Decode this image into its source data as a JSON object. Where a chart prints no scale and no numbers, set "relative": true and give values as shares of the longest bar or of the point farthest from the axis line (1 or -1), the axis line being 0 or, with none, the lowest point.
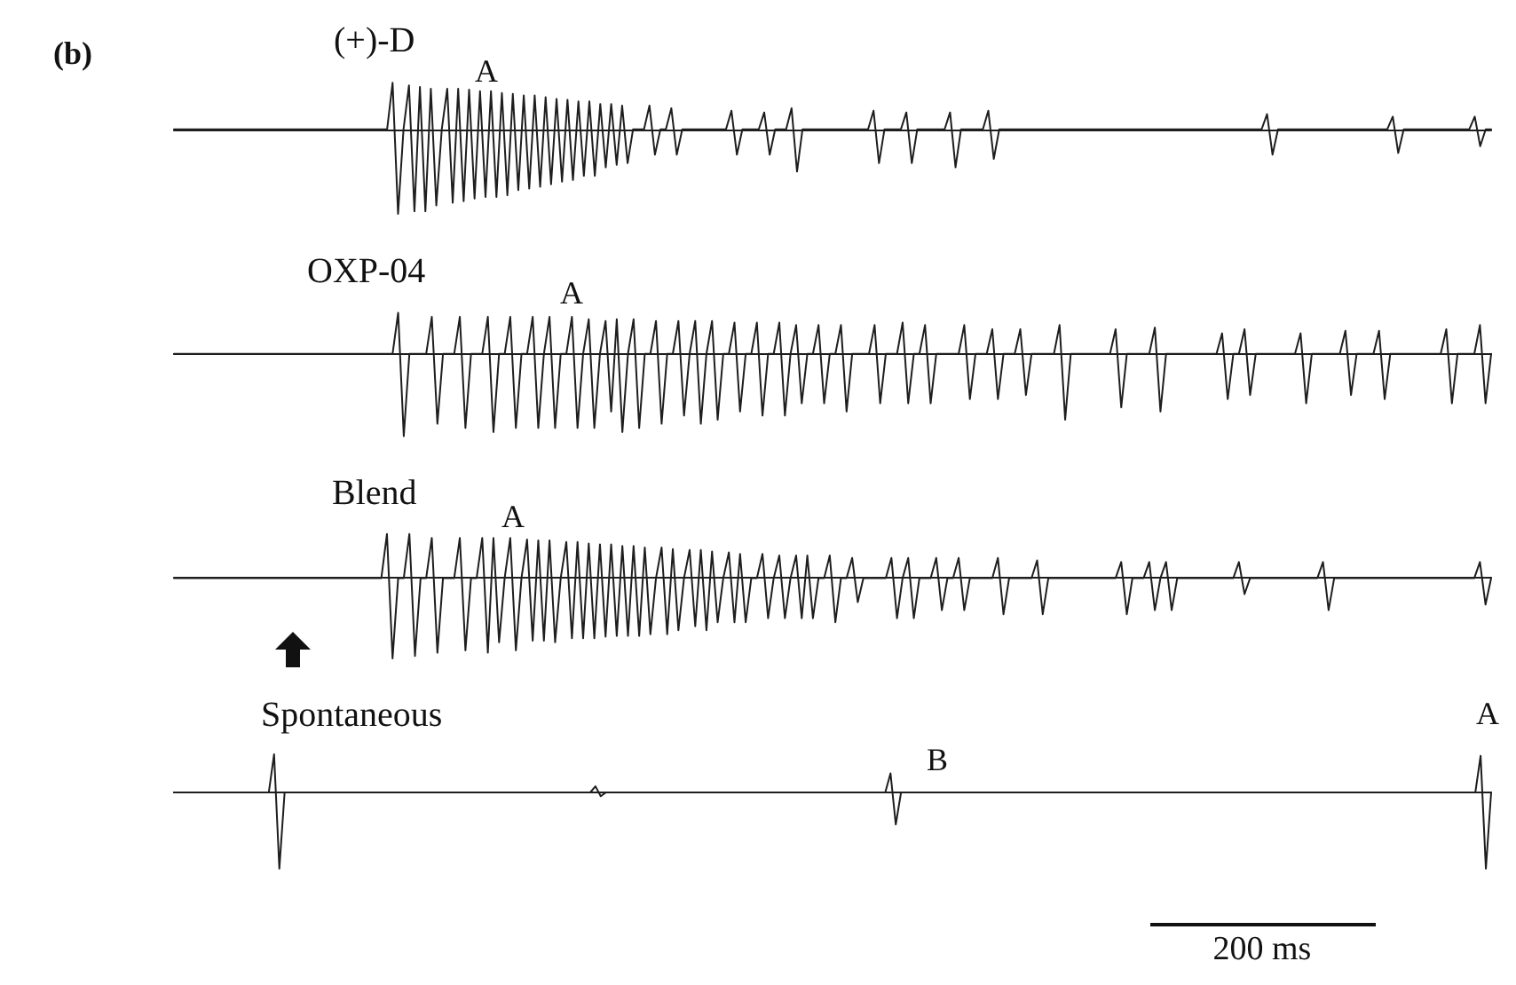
{
  "chart_data": [
    {
      "type": "line",
      "title": "(+)-D",
      "relative": true,
      "annotations": [
        "(b)",
        "A"
      ],
      "categories": [
        null,
        null,
        null,
        null,
        null,
        null,
        null,
        null,
        null,
        null,
        null,
        null,
        null,
        null,
        null,
        null,
        null,
        null,
        null,
        null,
        null,
        null,
        null,
        null,
        null,
        null,
        null,
        null,
        null,
        null,
        null,
        null,
        null,
        null,
        null,
        null,
        null,
        null,
        null,
        null,
        null,
        null,
        null,
        null,
        null,
        null,
        null,
        null,
        null,
        null,
        null,
        null,
        null,
        null,
        null,
        null,
        null,
        null,
        null,
        null,
        null,
        null,
        null,
        null,
        null,
        null,
        null,
        null,
        null,
        null,
        null,
        null,
        null,
        null,
        null,
        null,
        null,
        null,
        null,
        null,
        null,
        null,
        null,
        null,
        null,
        null,
        null,
        null,
        null,
        null,
        null,
        null,
        null,
        null,
        null,
        null,
        null,
        null,
        null,
        null,
        null,
        null,
        null,
        null,
        null,
        null,
        null,
        null,
        null,
        null,
        null,
        null,
        null,
        null,
        null,
        null,
        null,
        null,
        null,
        null,
        null,
        null,
        null,
        null,
        null,
        null,
        null,
        null,
        null,
        null,
        null,
        null,
        null,
        null,
        null,
        null,
        null,
        null,
        null,
        null,
        null,
        null,
        null,
        null,
        null,
        null,
        null,
        null,
        null,
        null,
        null,
        null,
        null,
        null,
        null,
        null,
        null,
        null,
        null,
        null,
        null,
        null,
        null,
        null,
        null,
        null,
        null,
        null,
        null,
        null,
        null,
        null,
        null,
        null,
        null,
        null,
        null,
        null,
        null,
        null,
        null,
        null,
        null,
        null,
        null,
        null,
        null,
        null,
        null,
        null,
        null,
        null,
        null,
        null,
        null,
        null,
        null,
        null,
        null,
        null,
        null,
        null,
        null,
        null,
        null,
        null,
        null,
        null,
        null,
        null,
        null,
        null,
        null,
        null,
        null,
        null,
        null,
        null,
        null,
        null,
        null,
        null,
        null,
        null,
        null,
        null,
        null,
        null,
        null,
        null,
        null,
        null,
        null,
        null,
        null,
        null,
        null,
        null,
        null,
        null,
        null,
        null
      ],
      "series": [
        {
          "color": "#1e1e1e",
          "values": [
            0,
            0,
            0,
            0,
            0,
            0,
            0,
            0,
            0,
            0,
            0,
            0,
            0,
            0,
            0,
            0,
            0,
            0,
            0,
            0,
            0,
            0,
            0,
            0,
            0,
            0,
            0,
            0,
            0,
            0,
            0,
            0,
            0,
            0,
            0,
            0,
            0,
            0,
            0,
            0,
            0.55,
            -1,
            0,
            0.52,
            -0.97,
            0.5,
            -0.97,
            0.48,
            -0.9,
            0,
            0.48,
            -0.87,
            0.48,
            -0.85,
            0.47,
            -0.82,
            0.45,
            -0.8,
            0.45,
            -0.8,
            0.43,
            -0.78,
            0.42,
            -0.72,
            0.4,
            -0.7,
            0.4,
            -0.68,
            0.38,
            -0.65,
            0.36,
            -0.62,
            0.35,
            -0.6,
            0.33,
            -0.55,
            0.33,
            -0.55,
            0.3,
            -0.45,
            0.3,
            -0.42,
            0.28,
            -0.4,
            0,
            0,
            0,
            0.28,
            -0.3,
            0,
            0,
            0.25,
            -0.3,
            0,
            0,
            0,
            0,
            0,
            0,
            0,
            0,
            0,
            0.22,
            -0.3,
            0,
            0,
            0,
            0,
            0.2,
            -0.3,
            0,
            0,
            0,
            0.25,
            -0.5,
            0,
            0,
            0,
            0,
            0,
            0,
            0,
            0,
            0,
            0,
            0,
            0,
            0,
            0.22,
            -0.4,
            0,
            0,
            0,
            0,
            0.2,
            -0.4,
            0,
            0,
            0,
            0,
            0,
            0,
            0.2,
            -0.45,
            0,
            0,
            0,
            0,
            0,
            0.22,
            -0.35,
            0,
            0,
            0,
            0,
            0,
            0,
            0,
            0,
            0,
            0,
            0,
            0,
            0,
            0,
            0,
            0,
            0,
            0,
            0,
            0,
            0,
            0,
            0,
            0,
            0,
            0,
            0,
            0,
            0,
            0,
            0,
            0,
            0,
            0,
            0,
            0,
            0,
            0,
            0,
            0,
            0,
            0,
            0,
            0,
            0,
            0,
            0,
            0,
            0,
            0.18,
            -0.3,
            0,
            0,
            0,
            0,
            0,
            0,
            0,
            0,
            0,
            0,
            0,
            0,
            0,
            0,
            0,
            0,
            0,
            0,
            0,
            0,
            0,
            0.15,
            -0.28,
            0,
            0,
            0,
            0,
            0,
            0,
            0,
            0,
            0,
            0,
            0,
            0,
            0,
            0.15,
            -0.2,
            0,
            0
          ]
        }
      ]
    },
    {
      "type": "line",
      "title": "OXP-04",
      "relative": true,
      "annotations": [
        "A"
      ],
      "categories": [
        null,
        null,
        null,
        null,
        null,
        null,
        null,
        null,
        null,
        null,
        null,
        null,
        null,
        null,
        null,
        null,
        null,
        null,
        null,
        null,
        null,
        null,
        null,
        null,
        null,
        null,
        null,
        null,
        null,
        null,
        null,
        null,
        null,
        null,
        null,
        null,
        null,
        null,
        null,
        null,
        null,
        null,
        null,
        null,
        null,
        null,
        null,
        null,
        null,
        null,
        null,
        null,
        null,
        null,
        null,
        null,
        null,
        null,
        null,
        null,
        null,
        null,
        null,
        null,
        null,
        null,
        null,
        null,
        null,
        null,
        null,
        null,
        null,
        null,
        null,
        null,
        null,
        null,
        null,
        null,
        null,
        null,
        null,
        null,
        null,
        null,
        null,
        null,
        null,
        null,
        null,
        null,
        null,
        null,
        null,
        null,
        null,
        null,
        null,
        null,
        null,
        null,
        null,
        null,
        null,
        null,
        null,
        null,
        null,
        null,
        null,
        null,
        null,
        null,
        null,
        null,
        null,
        null,
        null,
        null,
        null,
        null,
        null,
        null,
        null,
        null,
        null,
        null,
        null,
        null,
        null,
        null,
        null,
        null,
        null,
        null,
        null,
        null,
        null,
        null,
        null,
        null,
        null,
        null,
        null,
        null,
        null,
        null,
        null,
        null,
        null,
        null,
        null,
        null,
        null,
        null,
        null,
        null,
        null,
        null,
        null,
        null,
        null,
        null,
        null,
        null,
        null,
        null,
        null,
        null,
        null,
        null,
        null,
        null,
        null,
        null,
        null,
        null,
        null,
        null,
        null,
        null,
        null,
        null,
        null,
        null,
        null,
        null,
        null,
        null,
        null,
        null,
        null,
        null,
        null,
        null,
        null,
        null,
        null,
        null,
        null,
        null,
        null,
        null,
        null,
        null,
        null,
        null,
        null,
        null,
        null,
        null,
        null,
        null,
        null,
        null,
        null,
        null,
        null,
        null,
        null,
        null,
        null,
        null,
        null,
        null,
        null,
        null,
        null,
        null,
        null,
        null,
        null,
        null,
        null,
        null
      ],
      "series": [
        {
          "color": "#1e1e1e",
          "values": [
            0,
            0,
            0,
            0,
            0,
            0,
            0,
            0,
            0,
            0,
            0,
            0,
            0,
            0,
            0,
            0,
            0,
            0,
            0,
            0,
            0,
            0,
            0,
            0,
            0,
            0,
            0,
            0,
            0,
            0,
            0,
            0,
            0,
            0,
            0,
            0,
            0,
            0,
            0,
            0,
            0.5,
            -1,
            0,
            0,
            0,
            0,
            0.45,
            -0.85,
            0,
            0,
            0,
            0.45,
            -0.9,
            0,
            0,
            0,
            0.45,
            -0.95,
            0,
            0,
            0.45,
            -0.9,
            0,
            0,
            0.45,
            -0.9,
            0,
            0.45,
            -0.9,
            0,
            0,
            0.45,
            -0.9,
            0,
            0.42,
            -0.9,
            0,
            0.4,
            -0.7,
            0.42,
            -0.95,
            0,
            0.42,
            -0.9,
            0,
            0,
            0.4,
            -0.85,
            0,
            0,
            0.4,
            -0.75,
            0,
            0.4,
            -0.85,
            0,
            0.4,
            -0.8,
            0,
            0,
            0.38,
            -0.7,
            0,
            0,
            0.38,
            -0.75,
            0,
            0,
            0.38,
            -0.75,
            0,
            0.35,
            -0.6,
            0,
            0,
            0.35,
            -0.6,
            0,
            0,
            0.35,
            -0.7,
            0,
            0,
            0,
            0,
            0.35,
            -0.6,
            0,
            0,
            0,
            0.38,
            -0.6,
            0,
            0,
            0.35,
            -0.6,
            0,
            0,
            0,
            0,
            0,
            0.35,
            -0.55,
            0,
            0,
            0,
            0.3,
            -0.55,
            0,
            0,
            0,
            0.3,
            -0.5,
            0,
            0,
            0,
            0,
            0,
            0.35,
            -0.8,
            0,
            0,
            0,
            0,
            0,
            0,
            0,
            0,
            0.3,
            -0.65,
            0,
            0,
            0,
            0,
            0,
            0.32,
            -0.7,
            0,
            0,
            0,
            0,
            0,
            0,
            0,
            0,
            0,
            0,
            0.25,
            -0.55,
            0,
            0,
            0.3,
            -0.5,
            0,
            0,
            0,
            0,
            0,
            0,
            0,
            0,
            0.25,
            -0.6,
            0,
            0,
            0,
            0,
            0,
            0,
            0.28,
            -0.5,
            0,
            0,
            0,
            0,
            0.28,
            -0.55,
            0,
            0,
            0,
            0,
            0,
            0,
            0,
            0,
            0,
            0,
            0.3,
            -0.6,
            0,
            0,
            0,
            0,
            0.35,
            -0.6,
            0
          ]
        }
      ]
    },
    {
      "type": "line",
      "title": "Blend",
      "relative": true,
      "annotations": [
        "A"
      ],
      "categories": [
        null,
        null,
        null,
        null,
        null,
        null,
        null,
        null,
        null,
        null,
        null,
        null,
        null,
        null,
        null,
        null,
        null,
        null,
        null,
        null,
        null,
        null,
        null,
        null,
        null,
        null,
        null,
        null,
        null,
        null,
        null,
        null,
        null,
        null,
        null,
        null,
        null,
        null,
        null,
        null,
        null,
        null,
        null,
        null,
        null,
        null,
        null,
        null,
        null,
        null,
        null,
        null,
        null,
        null,
        null,
        null,
        null,
        null,
        null,
        null,
        null,
        null,
        null,
        null,
        null,
        null,
        null,
        null,
        null,
        null,
        null,
        null,
        null,
        null,
        null,
        null,
        null,
        null,
        null,
        null,
        null,
        null,
        null,
        null,
        null,
        null,
        null,
        null,
        null,
        null,
        null,
        null,
        null,
        null,
        null,
        null,
        null,
        null,
        null,
        null,
        null,
        null,
        null,
        null,
        null,
        null,
        null,
        null,
        null,
        null,
        null,
        null,
        null,
        null,
        null,
        null,
        null,
        null,
        null,
        null,
        null,
        null,
        null,
        null,
        null,
        null,
        null,
        null,
        null,
        null,
        null,
        null,
        null,
        null,
        null,
        null,
        null,
        null,
        null,
        null,
        null,
        null,
        null,
        null,
        null,
        null,
        null,
        null,
        null,
        null,
        null,
        null,
        null,
        null,
        null,
        null,
        null,
        null,
        null,
        null,
        null,
        null,
        null,
        null,
        null,
        null,
        null,
        null,
        null,
        null,
        null,
        null,
        null,
        null,
        null,
        null,
        null,
        null,
        null,
        null,
        null,
        null,
        null,
        null,
        null,
        null,
        null,
        null,
        null,
        null,
        null,
        null,
        null,
        null,
        null,
        null,
        null,
        null,
        null,
        null,
        null,
        null,
        null,
        null,
        null,
        null,
        null,
        null,
        null,
        null,
        null,
        null,
        null,
        null,
        null,
        null,
        null,
        null,
        null,
        null,
        null,
        null,
        null,
        null,
        null,
        null,
        null,
        null,
        null,
        null,
        null,
        null,
        null,
        null,
        null,
        null
      ],
      "series": [
        {
          "color": "#1e1e1e",
          "values": [
            0,
            0,
            0,
            0,
            0,
            0,
            0,
            0,
            0,
            0,
            0,
            0,
            0,
            0,
            0,
            0,
            0,
            0,
            0,
            0,
            0,
            0,
            0,
            0,
            0,
            0,
            0,
            0,
            0,
            0,
            0,
            0,
            0,
            0,
            0,
            0,
            0,
            0,
            0.55,
            -1,
            0,
            0,
            0.55,
            -0.97,
            0,
            0,
            0.5,
            -0.93,
            0,
            0,
            0,
            0.5,
            -0.9,
            0,
            0,
            0.5,
            -0.93,
            0.5,
            -0.8,
            0,
            0.5,
            -0.9,
            0,
            0.48,
            -0.78,
            0.47,
            -0.78,
            0.47,
            -0.8,
            0,
            0.45,
            -0.75,
            0.45,
            -0.75,
            0.43,
            -0.75,
            0.42,
            -0.73,
            0.42,
            -0.72,
            0.4,
            -0.72,
            0.4,
            -0.72,
            0.38,
            -0.7,
            0,
            0.38,
            -0.7,
            0.36,
            -0.65,
            0,
            0.35,
            -0.6,
            0.35,
            -0.65,
            0.33,
            -0.55,
            0,
            0.32,
            -0.55,
            0.3,
            -0.55,
            0,
            0,
            0.3,
            -0.5,
            0,
            0.28,
            -0.5,
            0,
            0.28,
            -0.5,
            0.28,
            -0.5,
            0,
            0,
            0.28,
            -0.55,
            0,
            0,
            0.25,
            -0.3,
            0,
            0,
            0,
            0,
            0,
            0.25,
            -0.5,
            0,
            0.25,
            -0.5,
            0,
            0,
            0,
            0.25,
            -0.4,
            0,
            0,
            0.25,
            -0.4,
            0,
            0,
            0,
            0,
            0,
            0.25,
            -0.45,
            0,
            0,
            0,
            0,
            0,
            0.22,
            -0.45,
            0,
            0,
            0,
            0,
            0,
            0,
            0,
            0,
            0,
            0,
            0,
            0,
            0,
            0.2,
            -0.45,
            0,
            0,
            0,
            0.2,
            -0.4,
            0,
            0.2,
            -0.4,
            0,
            0,
            0,
            0,
            0,
            0,
            0,
            0,
            0,
            0,
            0,
            0.2,
            -0.2,
            0,
            0,
            0,
            0,
            0,
            0,
            0,
            0,
            0,
            0,
            0,
            0,
            0,
            0.2,
            -0.4,
            0,
            0,
            0,
            0,
            0,
            0,
            0,
            0,
            0,
            0,
            0,
            0,
            0,
            0,
            0,
            0,
            0,
            0,
            0,
            0,
            0,
            0,
            0,
            0,
            0,
            0,
            0.2,
            -0.33,
            0
          ]
        }
      ]
    },
    {
      "type": "line",
      "title": "Spontaneous",
      "relative": true,
      "annotations": [
        "B",
        "A",
        "200 ms"
      ],
      "categories": [
        null,
        null,
        null,
        null,
        null,
        null,
        null,
        null,
        null,
        null,
        null,
        null,
        null,
        null,
        null,
        null,
        null,
        null,
        null,
        null,
        null,
        null,
        null,
        null,
        null,
        null,
        null,
        null,
        null,
        null,
        null,
        null,
        null,
        null,
        null,
        null,
        null,
        null,
        null,
        null,
        null,
        null,
        null,
        null,
        null,
        null,
        null,
        null,
        null,
        null,
        null,
        null,
        null,
        null,
        null,
        null,
        null,
        null,
        null,
        null,
        null,
        null,
        null,
        null,
        null,
        null,
        null,
        null,
        null,
        null,
        null,
        null,
        null,
        null,
        null,
        null,
        null,
        null,
        null,
        null,
        null,
        null,
        null,
        null,
        null,
        null,
        null,
        null,
        null,
        null,
        null,
        null,
        null,
        null,
        null,
        null,
        null,
        null,
        null,
        null,
        null,
        null,
        null,
        null,
        null,
        null,
        null,
        null,
        null,
        null,
        null,
        null,
        null,
        null,
        null,
        null,
        null,
        null,
        null,
        null,
        null,
        null,
        null,
        null,
        null,
        null,
        null,
        null,
        null,
        null,
        null,
        null,
        null,
        null,
        null,
        null,
        null,
        null,
        null,
        null,
        null,
        null,
        null,
        null,
        null,
        null,
        null,
        null,
        null,
        null,
        null,
        null,
        null,
        null,
        null,
        null,
        null,
        null,
        null,
        null,
        null,
        null,
        null,
        null,
        null,
        null,
        null,
        null,
        null,
        null,
        null,
        null,
        null,
        null,
        null,
        null,
        null,
        null,
        null,
        null,
        null,
        null,
        null,
        null,
        null,
        null,
        null,
        null,
        null,
        null,
        null,
        null,
        null,
        null,
        null,
        null,
        null,
        null,
        null,
        null,
        null,
        null,
        null,
        null,
        null,
        null,
        null,
        null,
        null,
        null,
        null,
        null,
        null,
        null,
        null,
        null,
        null,
        null,
        null,
        null,
        null,
        null,
        null,
        null,
        null,
        null,
        null,
        null,
        null,
        null,
        null,
        null,
        null,
        null,
        null,
        null,
        null,
        null,
        null,
        null,
        null,
        null,
        null,
        null,
        null,
        null,
        null,
        null,
        null,
        null,
        null
      ],
      "series": [
        {
          "color": "#1e1e1e",
          "values": [
            0,
            0,
            0,
            0,
            0,
            0,
            0,
            0,
            0,
            0,
            0,
            0,
            0,
            0,
            0,
            0,
            0,
            0,
            0,
            0.5,
            -1,
            0,
            0,
            0,
            0,
            0,
            0,
            0,
            0,
            0,
            0,
            0,
            0,
            0,
            0,
            0,
            0,
            0,
            0,
            0,
            0,
            0,
            0,
            0,
            0,
            0,
            0,
            0,
            0,
            0,
            0,
            0,
            0,
            0,
            0,
            0,
            0,
            0,
            0,
            0,
            0,
            0,
            0,
            0,
            0,
            0,
            0,
            0,
            0,
            0,
            0,
            0,
            0,
            0,
            0,
            0,
            0,
            0,
            0,
            0,
            0.08,
            -0.05,
            0,
            0,
            0,
            0,
            0,
            0,
            0,
            0,
            0,
            0,
            0,
            0,
            0,
            0,
            0,
            0,
            0,
            0,
            0,
            0,
            0,
            0,
            0,
            0,
            0,
            0,
            0,
            0,
            0,
            0,
            0,
            0,
            0,
            0,
            0,
            0,
            0,
            0,
            0,
            0,
            0,
            0,
            0,
            0,
            0,
            0,
            0,
            0,
            0,
            0,
            0,
            0,
            0,
            0,
            0.25,
            -0.42,
            0,
            0,
            0,
            0,
            0,
            0,
            0,
            0,
            0,
            0,
            0,
            0,
            0,
            0,
            0,
            0,
            0,
            0,
            0,
            0,
            0,
            0,
            0,
            0,
            0,
            0,
            0,
            0,
            0,
            0,
            0,
            0,
            0,
            0,
            0,
            0,
            0,
            0,
            0,
            0,
            0,
            0,
            0,
            0,
            0,
            0,
            0,
            0,
            0,
            0,
            0,
            0,
            0,
            0,
            0,
            0,
            0,
            0,
            0,
            0,
            0,
            0,
            0,
            0,
            0,
            0,
            0,
            0,
            0,
            0,
            0,
            0,
            0,
            0,
            0,
            0,
            0,
            0,
            0,
            0,
            0,
            0,
            0,
            0,
            0,
            0,
            0,
            0,
            0,
            0,
            0,
            0,
            0,
            0,
            0,
            0,
            0,
            0,
            0,
            0,
            0,
            0,
            0,
            0,
            0,
            0,
            0,
            0,
            0,
            0,
            0.48,
            -1,
            0
          ]
        }
      ]
    }
  ]
}
